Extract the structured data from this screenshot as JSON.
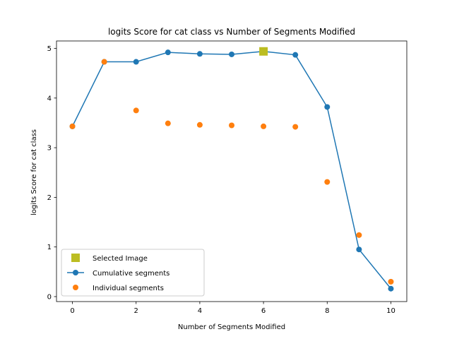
{
  "chart_data": {
    "type": "line",
    "title": "logits Score for cat class vs Number of Segments Modified",
    "xlabel": "Number of Segments Modified",
    "ylabel": "logits Score for cat class",
    "xlim": [
      -0.5,
      10.5
    ],
    "ylim": [
      -0.1,
      5.15
    ],
    "xticks": [
      0,
      2,
      4,
      6,
      8,
      10
    ],
    "yticks": [
      0,
      1,
      2,
      3,
      4,
      5
    ],
    "grid": false,
    "legend_position": "lower-left",
    "series": [
      {
        "name": "Selected Image",
        "marker": "square",
        "color": "#bcbd22",
        "x": [
          6
        ],
        "y": [
          4.94
        ]
      },
      {
        "name": "Cumulative segments",
        "marker": "circle-line",
        "color": "#1f77b4",
        "x": [
          0,
          1,
          2,
          3,
          4,
          5,
          6,
          7,
          8,
          9,
          10
        ],
        "y": [
          3.43,
          4.73,
          4.73,
          4.92,
          4.89,
          4.88,
          4.94,
          4.87,
          3.82,
          0.95,
          0.16
        ]
      },
      {
        "name": "Individual segments",
        "marker": "circle",
        "color": "#ff7f0e",
        "x": [
          0,
          1,
          2,
          3,
          4,
          5,
          6,
          7,
          8,
          9,
          10
        ],
        "y": [
          3.43,
          4.73,
          3.75,
          3.49,
          3.46,
          3.45,
          3.43,
          3.42,
          2.31,
          1.24,
          0.3
        ]
      }
    ]
  }
}
